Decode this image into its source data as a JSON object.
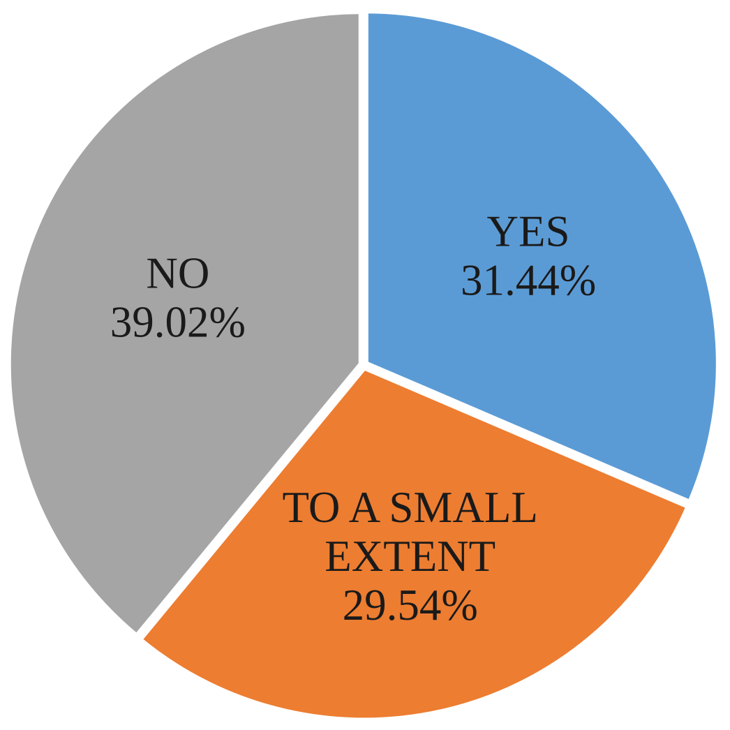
{
  "chart_data": {
    "type": "pie",
    "title": "",
    "slices": [
      {
        "label_lines": [
          "YES"
        ],
        "value_label": "31.44%",
        "value": 31.44,
        "color": "#5B9BD5"
      },
      {
        "label_lines": [
          "TO A SMALL",
          "EXTENT"
        ],
        "value_label": "29.54%",
        "value": 29.54,
        "color": "#ED7D31"
      },
      {
        "label_lines": [
          "NO"
        ],
        "value_label": "39.02%",
        "value": 39.02,
        "color": "#A5A5A5"
      }
    ],
    "start_angle_deg": 0,
    "direction": "clockwise",
    "legend": "none",
    "data_labels": "inside"
  }
}
